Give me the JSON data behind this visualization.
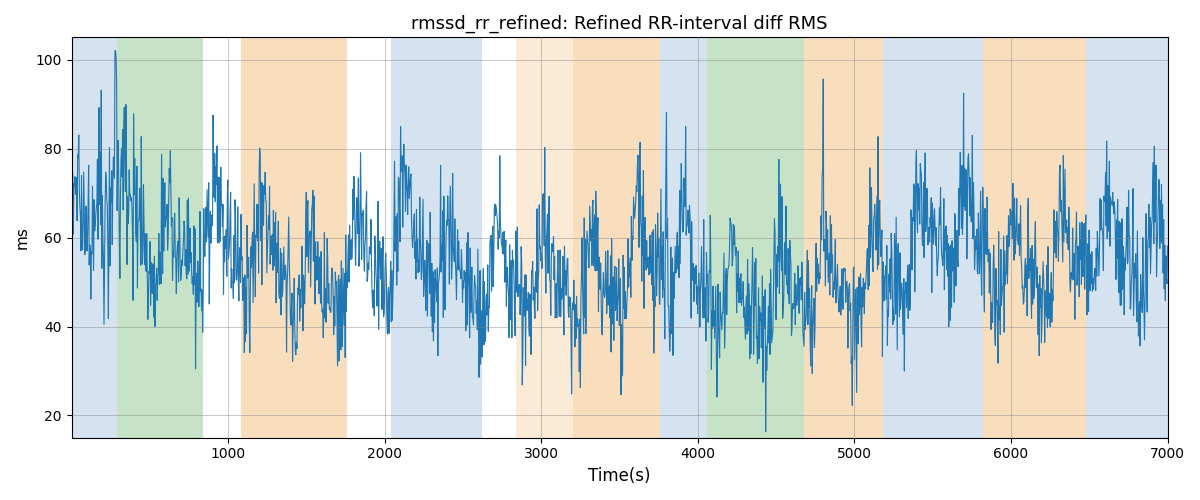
{
  "title": "rmssd_rr_refined: Refined RR-interval diff RMS",
  "xlabel": "Time(s)",
  "ylabel": "ms",
  "xlim": [
    0,
    7000
  ],
  "ylim": [
    15,
    105
  ],
  "yticks": [
    20,
    40,
    60,
    80,
    100
  ],
  "xticks": [
    1000,
    2000,
    3000,
    4000,
    5000,
    6000,
    7000
  ],
  "line_color": "#1f77b4",
  "line_width": 0.8,
  "background_bands": [
    {
      "xmin": 0,
      "xmax": 290,
      "color": "#adc6e0",
      "alpha": 0.5
    },
    {
      "xmin": 290,
      "xmax": 840,
      "color": "#90c990",
      "alpha": 0.5
    },
    {
      "xmin": 840,
      "xmax": 1080,
      "color": "#ffffff",
      "alpha": 0.0
    },
    {
      "xmin": 1080,
      "xmax": 1760,
      "color": "#f5c48a",
      "alpha": 0.55
    },
    {
      "xmin": 1760,
      "xmax": 2040,
      "color": "#ffffff",
      "alpha": 0.0
    },
    {
      "xmin": 2040,
      "xmax": 2620,
      "color": "#adc6e0",
      "alpha": 0.5
    },
    {
      "xmin": 2620,
      "xmax": 2840,
      "color": "#ffffff",
      "alpha": 0.0
    },
    {
      "xmin": 2840,
      "xmax": 3200,
      "color": "#f5c48a",
      "alpha": 0.35
    },
    {
      "xmin": 3200,
      "xmax": 3760,
      "color": "#f5c48a",
      "alpha": 0.55
    },
    {
      "xmin": 3760,
      "xmax": 4060,
      "color": "#adc6e0",
      "alpha": 0.5
    },
    {
      "xmin": 4060,
      "xmax": 4680,
      "color": "#90c990",
      "alpha": 0.5
    },
    {
      "xmin": 4680,
      "xmax": 5180,
      "color": "#f5c48a",
      "alpha": 0.55
    },
    {
      "xmin": 5180,
      "xmax": 5820,
      "color": "#adc6e0",
      "alpha": 0.5
    },
    {
      "xmin": 5820,
      "xmax": 6480,
      "color": "#f5c48a",
      "alpha": 0.55
    },
    {
      "xmin": 6480,
      "xmax": 7000,
      "color": "#adc6e0",
      "alpha": 0.5
    }
  ],
  "n_points": 2000,
  "figsize": [
    12,
    5
  ],
  "dpi": 100
}
